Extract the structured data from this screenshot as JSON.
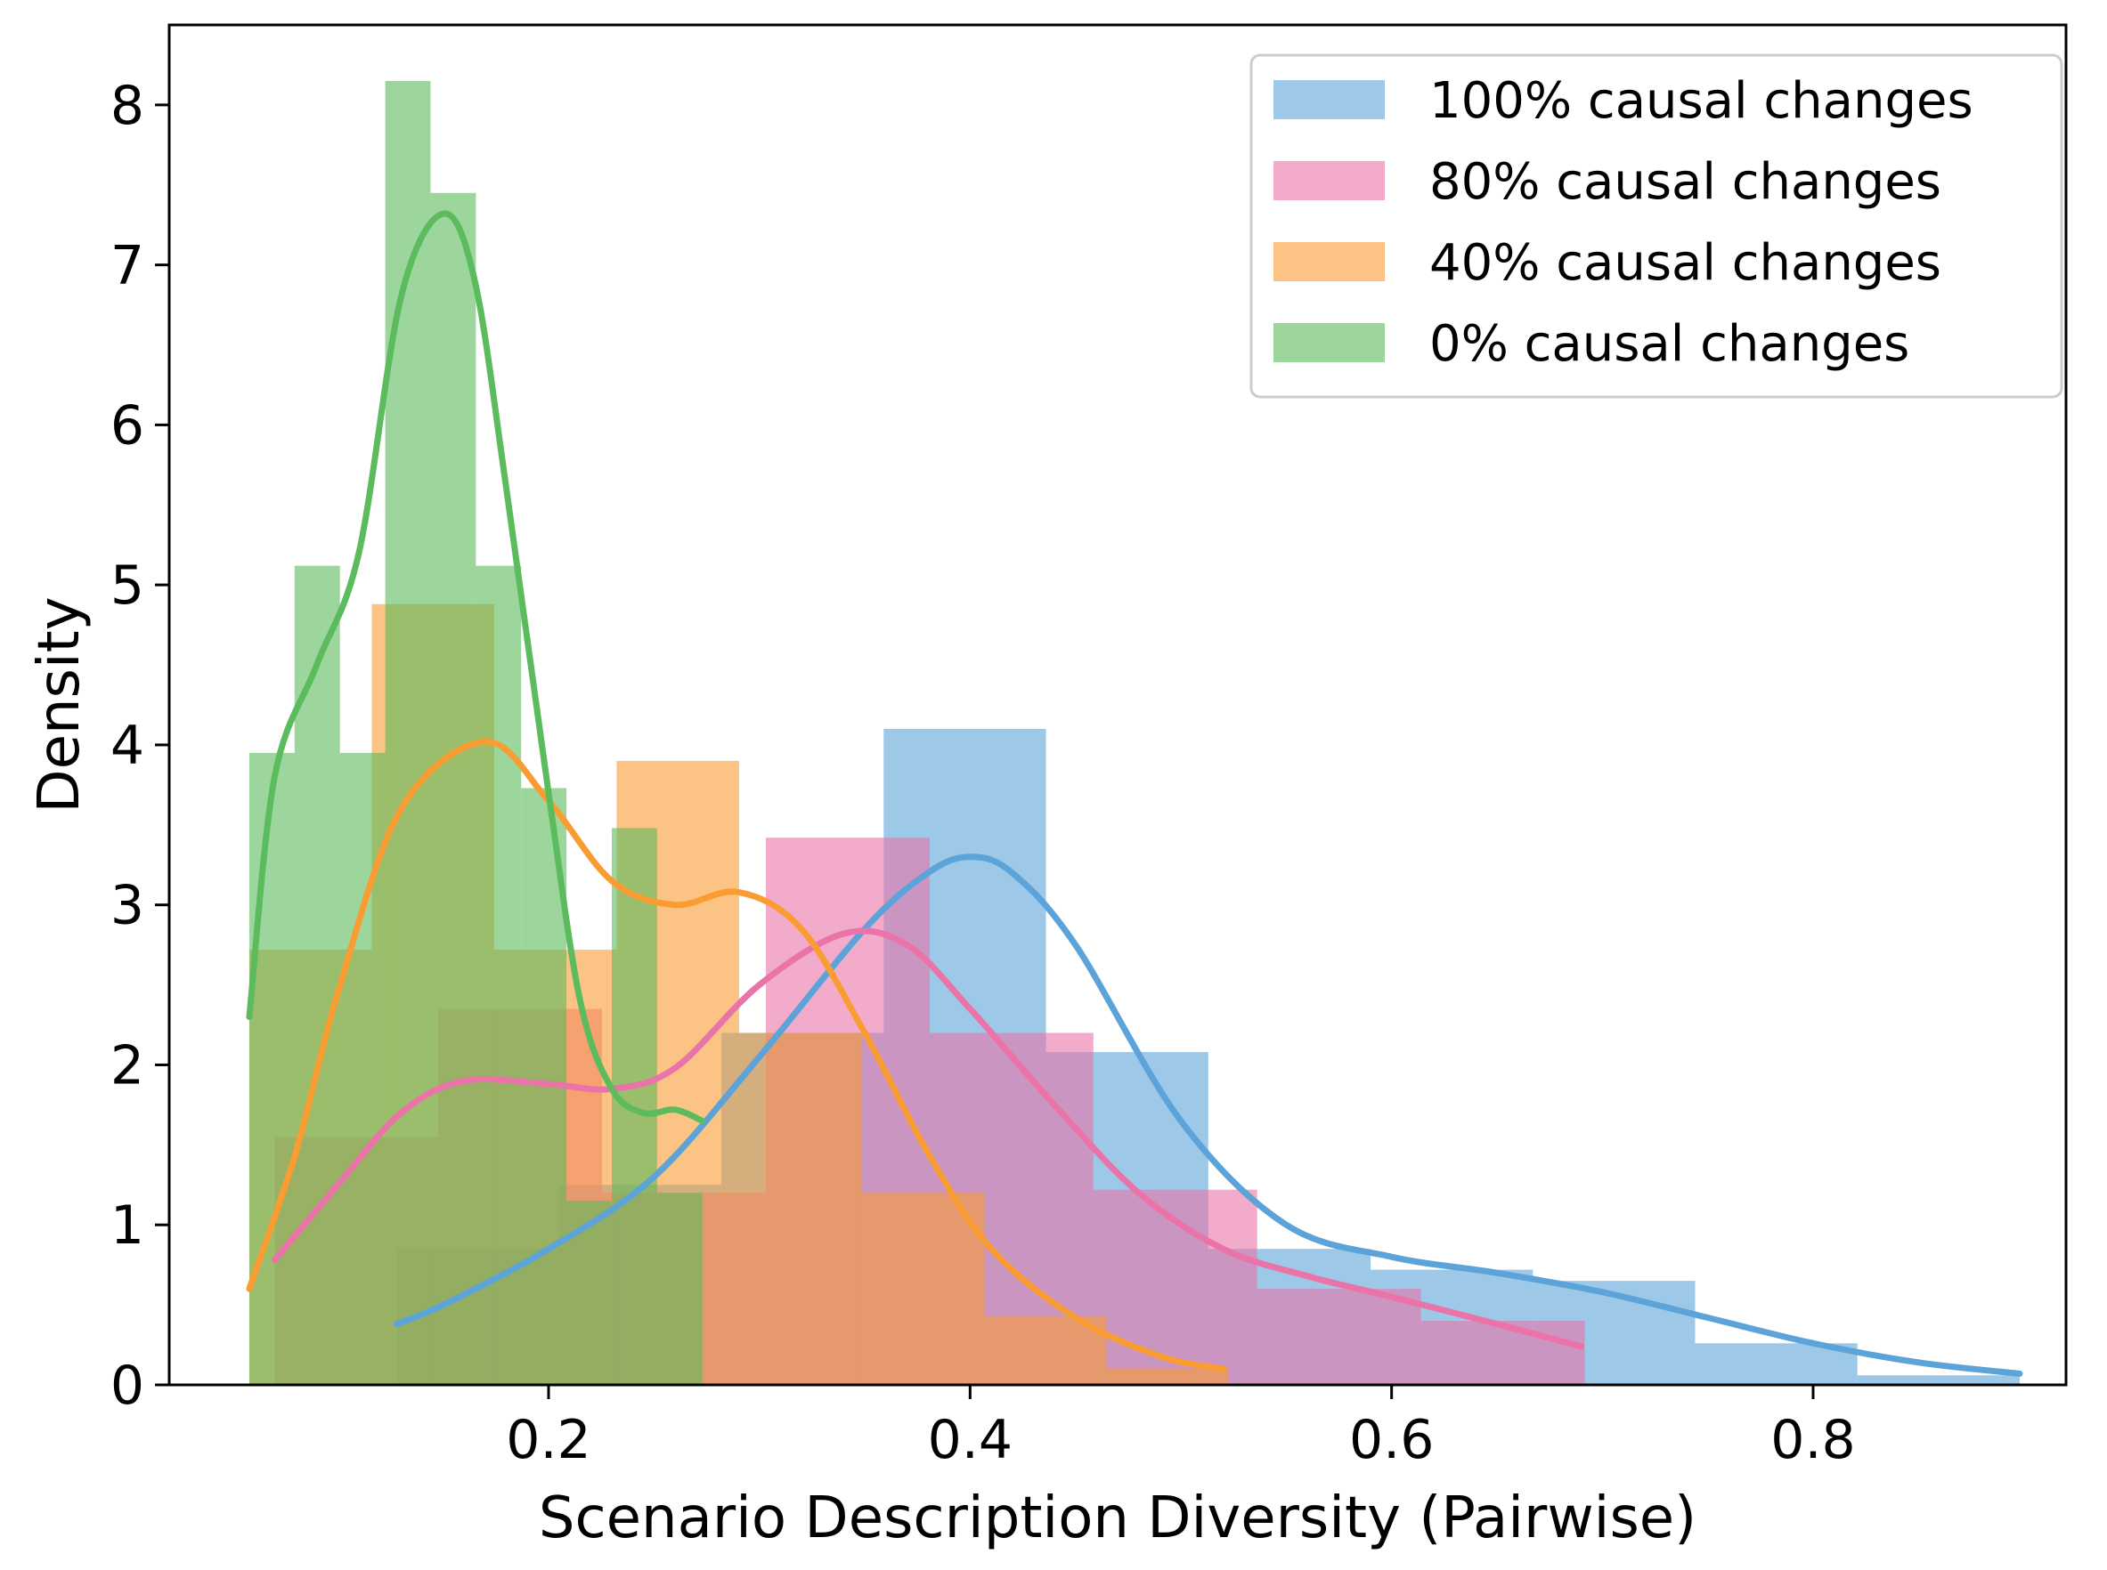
{
  "chart_data": {
    "type": "histogram_kde",
    "title": "",
    "xlabel": "Scenario Description Diversity (Pairwise)",
    "ylabel": "Density",
    "xlim": [
      0.02,
      0.92
    ],
    "ylim": [
      0,
      8.5
    ],
    "xticks": [
      {
        "value": 0.2,
        "label": "0.2"
      },
      {
        "value": 0.4,
        "label": "0.4"
      },
      {
        "value": 0.6,
        "label": "0.6"
      },
      {
        "value": 0.8,
        "label": "0.8"
      }
    ],
    "yticks": [
      {
        "value": 0,
        "label": "0"
      },
      {
        "value": 1,
        "label": "1"
      },
      {
        "value": 2,
        "label": "2"
      },
      {
        "value": 3,
        "label": "3"
      },
      {
        "value": 4,
        "label": "4"
      },
      {
        "value": 5,
        "label": "5"
      },
      {
        "value": 6,
        "label": "6"
      },
      {
        "value": 7,
        "label": "7"
      },
      {
        "value": 8,
        "label": "8"
      }
    ],
    "legend_position": "top-right",
    "series": [
      {
        "name": "100% causal changes",
        "color": "#5ba3d9",
        "bar_alpha": 0.6,
        "bin_edges": [
          0.128,
          0.205,
          0.282,
          0.359,
          0.436,
          0.513,
          0.59,
          0.667,
          0.744,
          0.821,
          0.898
        ],
        "densities": [
          0.85,
          1.25,
          2.2,
          4.1,
          2.08,
          0.85,
          0.72,
          0.65,
          0.26,
          0.06
        ],
        "kde_x": [
          0.128,
          0.15,
          0.2,
          0.25,
          0.3,
          0.35,
          0.38,
          0.4,
          0.42,
          0.45,
          0.5,
          0.55,
          0.6,
          0.65,
          0.7,
          0.75,
          0.8,
          0.85,
          0.898
        ],
        "kde_y": [
          0.38,
          0.5,
          0.85,
          1.3,
          2.05,
          2.85,
          3.2,
          3.3,
          3.2,
          2.75,
          1.65,
          1.0,
          0.8,
          0.7,
          0.58,
          0.42,
          0.26,
          0.14,
          0.07
        ]
      },
      {
        "name": "80% causal changes",
        "color": "#ea73a8",
        "bar_alpha": 0.6,
        "bin_edges": [
          0.07,
          0.1477,
          0.2254,
          0.3031,
          0.3808,
          0.4585,
          0.5362,
          0.6139,
          0.6916
        ],
        "densities": [
          1.55,
          2.35,
          1.2,
          3.42,
          2.2,
          1.22,
          0.6,
          0.4
        ],
        "kde_x": [
          0.07,
          0.1,
          0.13,
          0.16,
          0.2,
          0.23,
          0.26,
          0.3,
          0.34,
          0.37,
          0.4,
          0.44,
          0.48,
          0.52,
          0.56,
          0.6,
          0.65,
          0.69
        ],
        "kde_y": [
          0.78,
          1.25,
          1.7,
          1.9,
          1.88,
          1.85,
          1.98,
          2.5,
          2.82,
          2.75,
          2.35,
          1.75,
          1.2,
          0.85,
          0.68,
          0.55,
          0.38,
          0.24
        ]
      },
      {
        "name": "40% causal changes",
        "color": "#f99d33",
        "bar_alpha": 0.6,
        "bin_edges": [
          0.058,
          0.1161,
          0.1742,
          0.2323,
          0.2904,
          0.3485,
          0.4066,
          0.4647,
          0.5228
        ],
        "densities": [
          2.72,
          4.88,
          2.72,
          3.9,
          2.2,
          1.2,
          0.43,
          0.1
        ],
        "kde_x": [
          0.058,
          0.08,
          0.1,
          0.13,
          0.17,
          0.2,
          0.23,
          0.26,
          0.29,
          0.32,
          0.35,
          0.38,
          0.41,
          0.45,
          0.49,
          0.52
        ],
        "kde_y": [
          0.6,
          1.45,
          2.45,
          3.6,
          4.02,
          3.65,
          3.15,
          3.0,
          3.08,
          2.85,
          2.2,
          1.45,
          0.85,
          0.42,
          0.18,
          0.1
        ]
      },
      {
        "name": "0% causal changes",
        "color": "#5cbb5c",
        "bar_alpha": 0.6,
        "bin_edges": [
          0.058,
          0.0795,
          0.101,
          0.1225,
          0.144,
          0.1655,
          0.187,
          0.2085,
          0.23,
          0.2515,
          0.273
        ],
        "densities": [
          3.95,
          5.12,
          3.95,
          8.15,
          7.45,
          5.12,
          3.73,
          1.15,
          3.48,
          1.2
        ],
        "kde_x": [
          0.058,
          0.07,
          0.09,
          0.11,
          0.13,
          0.15,
          0.165,
          0.18,
          0.2,
          0.215,
          0.23,
          0.245,
          0.26,
          0.273
        ],
        "kde_y": [
          2.3,
          3.8,
          4.5,
          5.2,
          6.8,
          7.32,
          6.9,
          5.6,
          3.7,
          2.4,
          1.85,
          1.7,
          1.72,
          1.65
        ]
      }
    ]
  }
}
